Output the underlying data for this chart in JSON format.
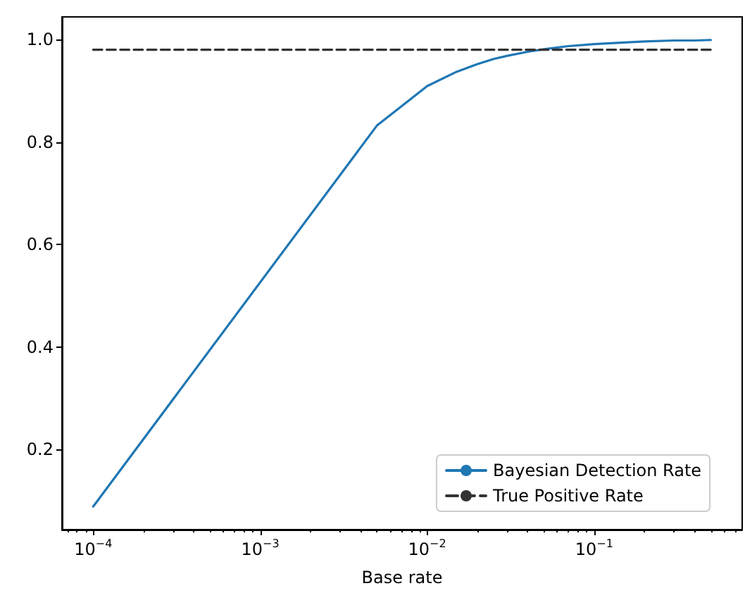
{
  "chart_data": {
    "type": "line",
    "xlabel": "Base rate",
    "log": "x",
    "grid": false,
    "legend": "bottom right",
    "marker": "none",
    "xlim": [
      6.5e-05,
      0.77
    ],
    "ylim": [
      0.044,
      1.044
    ],
    "xticks": [
      {
        "value": 0.0001,
        "label": "10$^{−4}$"
      },
      {
        "value": 0.001,
        "label": "10$^{−3}$"
      },
      {
        "value": 0.01,
        "label": "10$^{−2}$"
      },
      {
        "value": 0.1,
        "label": "10$^{−1}$"
      }
    ],
    "yticks": [
      0.2,
      0.4,
      0.6,
      0.8,
      {
        "value": 1,
        "label": "1.0"
      }
    ],
    "series": [
      {
        "name": "Bayesian Detection Rate",
        "color": "#1f77b4",
        "line_style": "solid",
        "x": [
          0.0001,
          0.005,
          0.01,
          0.015,
          0.02,
          0.025,
          0.03,
          0.04,
          0.05,
          0.07,
          0.1,
          0.15,
          0.2,
          0.3,
          0.4,
          0.5
        ],
        "values": [
          0.089,
          0.832,
          0.909,
          0.937,
          0.952,
          0.962,
          0.968,
          0.976,
          0.981,
          0.987,
          0.991,
          0.994,
          0.996,
          0.998,
          0.998,
          0.999
        ]
      },
      {
        "name": "True Positive Rate",
        "color": "#333333",
        "line_style": "dashed",
        "x": [
          0.0001,
          0.5
        ],
        "values": [
          0.98,
          0.98
        ]
      }
    ]
  }
}
